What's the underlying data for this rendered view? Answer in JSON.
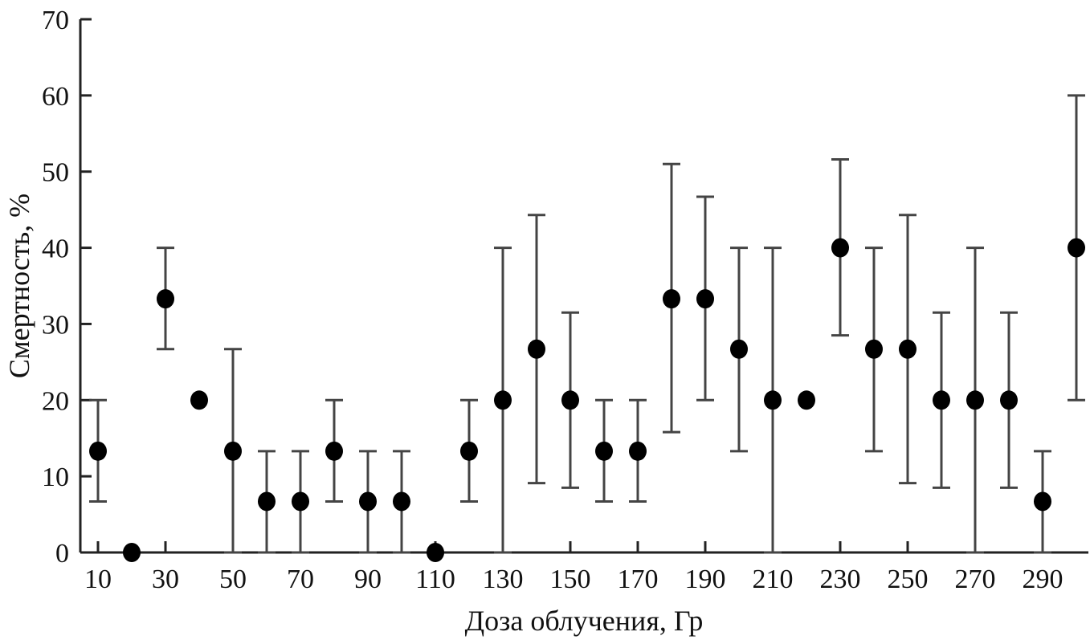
{
  "chart_data": {
    "type": "scatter",
    "title": "",
    "xlabel": "Доза облучения, Гр",
    "ylabel": "Смертность, %",
    "xlim": [
      5,
      305
    ],
    "ylim": [
      0,
      70
    ],
    "grid": false,
    "legend": "none",
    "xticks": [
      10,
      30,
      50,
      70,
      90,
      110,
      130,
      150,
      170,
      190,
      210,
      230,
      250,
      270,
      290
    ],
    "yticks": [
      0,
      10,
      20,
      30,
      40,
      50,
      60,
      70
    ],
    "colors": {
      "points": "#000000",
      "errorbars": "#444444",
      "axes": "#222222"
    },
    "series": [
      {
        "name": "mortality",
        "x": [
          10,
          20,
          30,
          40,
          50,
          60,
          70,
          80,
          90,
          100,
          110,
          120,
          130,
          140,
          150,
          160,
          170,
          180,
          190,
          200,
          210,
          220,
          230,
          240,
          250,
          260,
          270,
          280,
          290,
          300
        ],
        "y": [
          13.3,
          0,
          33.3,
          20,
          13.3,
          6.7,
          6.7,
          13.3,
          6.7,
          6.7,
          0,
          13.3,
          20,
          26.7,
          20,
          13.3,
          13.3,
          33.3,
          33.3,
          26.7,
          20,
          20,
          40,
          26.7,
          26.7,
          20,
          20,
          20,
          6.7,
          40
        ],
        "err_low": [
          6.7,
          null,
          26.7,
          null,
          0,
          0,
          0,
          6.7,
          0,
          0,
          null,
          6.7,
          0,
          9.1,
          8.5,
          6.7,
          6.7,
          15.8,
          20,
          13.3,
          0,
          null,
          28.5,
          13.3,
          9.1,
          8.5,
          0,
          8.5,
          0,
          20
        ],
        "err_high": [
          20,
          null,
          40,
          null,
          26.7,
          13.3,
          13.3,
          20,
          13.3,
          13.3,
          null,
          20,
          40,
          44.3,
          31.5,
          20,
          20,
          51,
          46.7,
          40,
          40,
          null,
          51.6,
          40,
          44.3,
          31.5,
          40,
          31.5,
          13.3,
          60
        ]
      }
    ]
  }
}
